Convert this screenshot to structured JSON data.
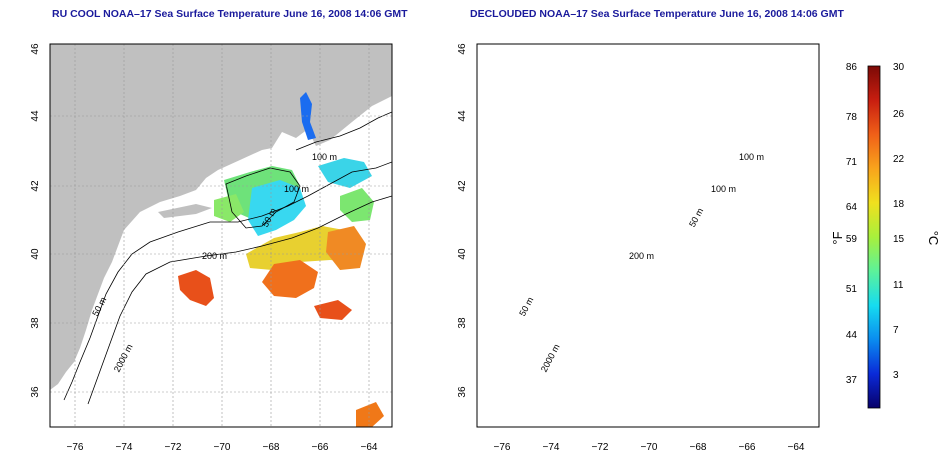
{
  "panels": [
    {
      "title": "RU COOL NOAA–17 Sea Surface Temperature June 16, 2008 14:06 GMT",
      "contours": [
        "100 m",
        "100 m",
        "50 m",
        "200 m",
        "50 m",
        "2000 m"
      ]
    },
    {
      "title": "DECLOUDED NOAA–17 Sea Surface Temperature June 16, 2008 14:06 GMT",
      "contours": [
        "100 m",
        "100 m",
        "50 m",
        "200 m",
        "50 m",
        "2000 m"
      ]
    }
  ],
  "axes": {
    "lat_ticks": [
      "46",
      "44",
      "42",
      "40",
      "38",
      "36"
    ],
    "lon_ticks": [
      "−76",
      "−74",
      "−72",
      "−70",
      "−68",
      "−66",
      "−64"
    ]
  },
  "colorbar": {
    "f_label": "°F",
    "c_label": "°C",
    "f_ticks": [
      "86",
      "78",
      "71",
      "64",
      "59",
      "51",
      "44",
      "37"
    ],
    "c_ticks": [
      "30",
      "26",
      "22",
      "18",
      "15",
      "11",
      "7",
      "3"
    ],
    "colors": [
      "#08006a",
      "#0a2ad8",
      "#0a8cf0",
      "#16dcf0",
      "#5cf29a",
      "#a8f03c",
      "#f0e01e",
      "#f8a41c",
      "#f06018",
      "#c81e10",
      "#7c0a06"
    ]
  },
  "colors": {
    "land": "#c0c0c0",
    "frame": "#000000",
    "title": "#1a1a9c",
    "warm": "#f06a20",
    "green": "#6ee27a",
    "cyan": "#38d8f0"
  }
}
